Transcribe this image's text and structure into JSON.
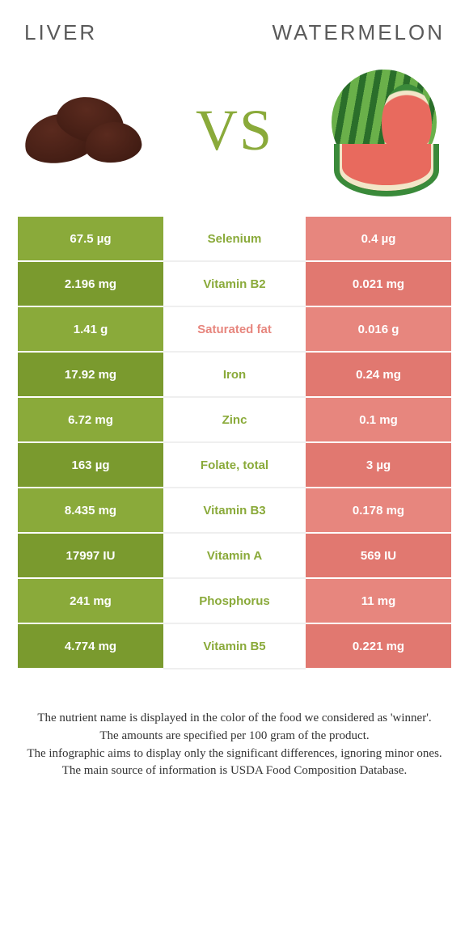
{
  "food_left": {
    "name": "LIVER",
    "color": "#8aaa3a",
    "color_dark": "#7a9a2e"
  },
  "food_right": {
    "name": "WATERMELON",
    "color": "#e7867e",
    "color_dark": "#e17870"
  },
  "vs_label": "VS",
  "vs_color": "#8aaa3a",
  "rows": [
    {
      "nutrient": "Selenium",
      "left": "67.5 µg",
      "right": "0.4 µg",
      "winner": "left"
    },
    {
      "nutrient": "Vitamin B2",
      "left": "2.196 mg",
      "right": "0.021 mg",
      "winner": "left"
    },
    {
      "nutrient": "Saturated fat",
      "left": "1.41 g",
      "right": "0.016 g",
      "winner": "right"
    },
    {
      "nutrient": "Iron",
      "left": "17.92 mg",
      "right": "0.24 mg",
      "winner": "left"
    },
    {
      "nutrient": "Zinc",
      "left": "6.72 mg",
      "right": "0.1 mg",
      "winner": "left"
    },
    {
      "nutrient": "Folate, total",
      "left": "163 µg",
      "right": "3 µg",
      "winner": "left"
    },
    {
      "nutrient": "Vitamin B3",
      "left": "8.435 mg",
      "right": "0.178 mg",
      "winner": "left"
    },
    {
      "nutrient": "Vitamin A",
      "left": "17997 IU",
      "right": "569 IU",
      "winner": "left"
    },
    {
      "nutrient": "Phosphorus",
      "left": "241 mg",
      "right": "11 mg",
      "winner": "left"
    },
    {
      "nutrient": "Vitamin B5",
      "left": "4.774 mg",
      "right": "0.221 mg",
      "winner": "left"
    }
  ],
  "footer_lines": [
    "The nutrient name is displayed in the color of the food we considered as 'winner'.",
    "The amounts are specified per 100 gram of the product.",
    "The infographic aims to display only the significant differences, ignoring minor ones.",
    "The main source of information is USDA Food Composition Database."
  ]
}
